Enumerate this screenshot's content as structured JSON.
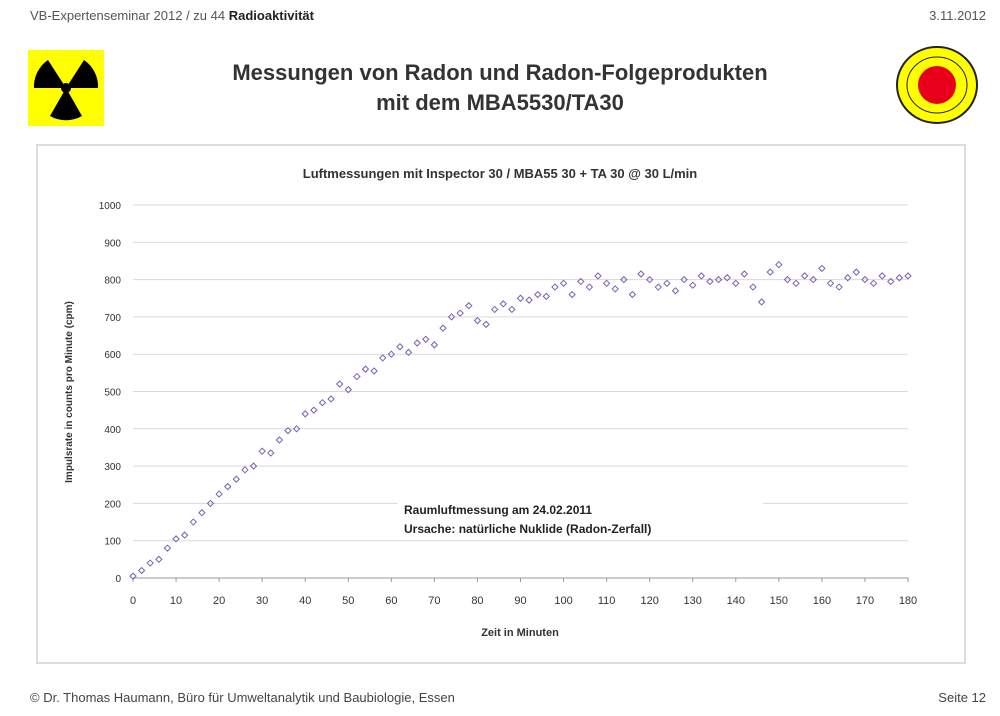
{
  "header": {
    "left_prefix": "VB-Expertenseminar 2012 / zu 44 ",
    "left_bold": "Radioaktivität",
    "date": "3.11.2012"
  },
  "title_line1": "Messungen von Radon und Radon-Folgeprodukten",
  "title_line2": "mit dem MBA5530/TA30",
  "footer": {
    "left": "© Dr. Thomas Haumann, Büro für Umweltanalytik und Baubiologie, Essen",
    "right": "Seite 12"
  },
  "colors": {
    "marker": "#7b5fb0",
    "grid": "#d9d9d9",
    "logo_yellow": "#ffff00",
    "logo_red": "#e8001a"
  },
  "chart_data": {
    "type": "scatter",
    "title": "Luftmessungen mit Inspector 30 / MBA55 30 + TA 30 @ 30 L/min",
    "xlabel": "Zeit in Minuten",
    "ylabel": "Impulsrate in counts pro Minute (cpm)",
    "xlim": [
      0,
      180
    ],
    "ylim": [
      0,
      1000
    ],
    "xticks": [
      0,
      10,
      20,
      30,
      40,
      50,
      60,
      70,
      80,
      90,
      100,
      110,
      120,
      130,
      140,
      150,
      160,
      170,
      180
    ],
    "yticks": [
      0,
      100,
      200,
      300,
      400,
      500,
      600,
      700,
      800,
      900,
      1000
    ],
    "grid": "horizontal",
    "annotation": [
      "Raumluftmessung am 24.02.2011",
      "Ursache: natürliche Nuklide (Radon-Zerfall)"
    ],
    "x": [
      0,
      2,
      4,
      6,
      8,
      10,
      12,
      14,
      16,
      18,
      20,
      22,
      24,
      26,
      28,
      30,
      32,
      34,
      36,
      38,
      40,
      42,
      44,
      46,
      48,
      50,
      52,
      54,
      56,
      58,
      60,
      62,
      64,
      66,
      68,
      70,
      72,
      74,
      76,
      78,
      80,
      82,
      84,
      86,
      88,
      90,
      92,
      94,
      96,
      98,
      100,
      102,
      104,
      106,
      108,
      110,
      112,
      114,
      116,
      118,
      120,
      122,
      124,
      126,
      128,
      130,
      132,
      134,
      136,
      138,
      140,
      142,
      144,
      146,
      148,
      150,
      152,
      154,
      156,
      158,
      160,
      162,
      164,
      166,
      168,
      170,
      172,
      174,
      176,
      178,
      180
    ],
    "y": [
      5,
      20,
      40,
      50,
      80,
      105,
      115,
      150,
      175,
      200,
      225,
      245,
      265,
      290,
      300,
      340,
      335,
      370,
      395,
      400,
      440,
      450,
      470,
      480,
      520,
      505,
      540,
      560,
      555,
      590,
      600,
      620,
      605,
      630,
      640,
      625,
      670,
      700,
      710,
      730,
      690,
      680,
      720,
      735,
      720,
      750,
      745,
      760,
      755,
      780,
      790,
      760,
      795,
      780,
      810,
      790,
      775,
      800,
      760,
      815,
      800,
      780,
      790,
      770,
      800,
      785,
      810,
      795,
      800,
      805,
      790,
      815,
      780,
      740,
      820,
      840,
      800,
      790,
      810,
      800,
      830,
      790,
      780,
      805,
      820,
      800,
      790,
      810,
      795,
      805,
      810
    ]
  }
}
